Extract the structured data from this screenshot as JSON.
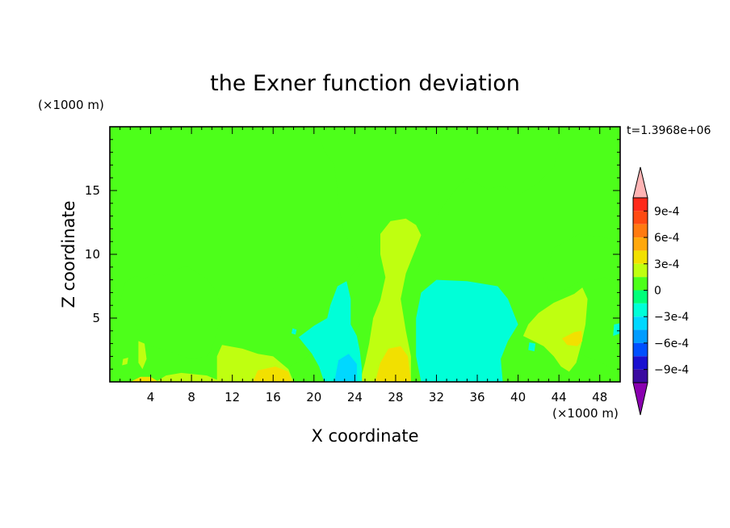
{
  "chart_data": {
    "type": "heatmap",
    "title": "the Exner function deviation",
    "xlabel": "X coordinate",
    "ylabel": "Z coordinate",
    "x_units": "(×1000 m)",
    "z_units": "(×1000 m)",
    "time_label": "t=1.3968e+06",
    "xlim": [
      0,
      50
    ],
    "ylim": [
      0,
      20
    ],
    "x_ticks": [
      4,
      8,
      12,
      16,
      20,
      24,
      28,
      32,
      36,
      40,
      44,
      48
    ],
    "y_ticks": [
      5,
      10,
      15
    ],
    "background_level": 0.0,
    "colorbar": {
      "labels": [
        {
          "value": 0.0009,
          "text": "9e-4"
        },
        {
          "value": 0.0006,
          "text": "6e-4"
        },
        {
          "value": 0.0003,
          "text": "3e-4"
        },
        {
          "value": 0,
          "text": "0"
        },
        {
          "value": -0.0003,
          "text": "−3e-4"
        },
        {
          "value": -0.0006,
          "text": "−6e-4"
        },
        {
          "value": -0.0009,
          "text": "−9e-4"
        }
      ],
      "levels": [
        {
          "min": 0.0009,
          "max": 0.00105,
          "color": "#ff2a1a"
        },
        {
          "min": 0.00075,
          "max": 0.0009,
          "color": "#ff4a12"
        },
        {
          "min": 0.0006,
          "max": 0.00075,
          "color": "#ff7a10"
        },
        {
          "min": 0.00045,
          "max": 0.0006,
          "color": "#ffa80c"
        },
        {
          "min": 0.0003,
          "max": 0.00045,
          "color": "#f2e000"
        },
        {
          "min": 0.00015,
          "max": 0.0003,
          "color": "#bfff10"
        },
        {
          "min": 0,
          "max": 0.00015,
          "color": "#4dff1a"
        },
        {
          "min": -0.00015,
          "max": 0,
          "color": "#00ff7a"
        },
        {
          "min": -0.0003,
          "max": -0.00015,
          "color": "#00ffd8"
        },
        {
          "min": -0.00045,
          "max": -0.0003,
          "color": "#00d8ff"
        },
        {
          "min": -0.0006,
          "max": -0.00045,
          "color": "#009cff"
        },
        {
          "min": -0.00075,
          "max": -0.0006,
          "color": "#0050ff"
        },
        {
          "min": -0.0009,
          "max": -0.00075,
          "color": "#1a10d0"
        },
        {
          "min": -0.00105,
          "max": -0.0009,
          "color": "#3a0aa0"
        }
      ],
      "over_color": "#ffb4b4",
      "under_color": "#8a00b0"
    },
    "regions": [
      {
        "level": 8e-05,
        "points": [
          [
            0,
            0
          ],
          [
            50,
            0
          ],
          [
            50,
            0.6
          ],
          [
            48,
            1.6
          ],
          [
            46,
            2.2
          ],
          [
            44.5,
            1.6
          ],
          [
            42,
            2.6
          ],
          [
            40,
            3.4
          ],
          [
            39,
            3.2
          ],
          [
            38,
            2.4
          ],
          [
            37,
            2
          ],
          [
            36,
            1.6
          ],
          [
            35,
            0.8
          ],
          [
            34,
            0.4
          ],
          [
            33,
            0.2
          ],
          [
            30,
            0.3
          ],
          [
            29.5,
            1
          ],
          [
            29,
            4
          ],
          [
            28.5,
            6.5
          ],
          [
            29,
            8.5
          ],
          [
            29.5,
            9.5
          ],
          [
            30,
            10.5
          ],
          [
            31,
            11.6
          ],
          [
            32.5,
            13.6
          ],
          [
            34,
            15.2
          ],
          [
            35,
            16
          ],
          [
            37,
            15.1
          ],
          [
            38.5,
            15.4
          ],
          [
            40,
            14.6
          ],
          [
            42,
            15.6
          ],
          [
            43.5,
            16.8
          ],
          [
            44,
            18.4
          ],
          [
            43.5,
            20
          ],
          [
            20.5,
            20
          ],
          [
            20.5,
            19.5
          ],
          [
            21,
            18.1
          ],
          [
            22,
            17
          ],
          [
            22.3,
            15
          ],
          [
            22.5,
            13.5
          ],
          [
            23,
            11.6
          ],
          [
            24,
            10.3
          ],
          [
            24.5,
            9.2
          ],
          [
            23.5,
            8.1
          ],
          [
            23,
            7
          ],
          [
            23.5,
            5.9
          ],
          [
            22.5,
            5.6
          ],
          [
            21.5,
            5.3
          ],
          [
            21.3,
            3.8
          ],
          [
            20,
            2.5
          ],
          [
            19,
            1.7
          ],
          [
            18,
            1.4
          ],
          [
            17,
            0.9
          ],
          [
            15,
            0.6
          ],
          [
            13,
            0.4
          ],
          [
            11,
            0.5
          ],
          [
            9,
            0.7
          ],
          [
            7,
            0.6
          ],
          [
            5,
            0.7
          ],
          [
            3.5,
            1
          ],
          [
            3,
            0.5
          ],
          [
            1.5,
            0.4
          ],
          [
            0,
            0.4
          ]
        ]
      },
      {
        "level": 8e-05,
        "points": [
          [
            1.5,
            7.8
          ],
          [
            2.5,
            8.3
          ],
          [
            3.4,
            8.1
          ],
          [
            4.5,
            8.5
          ],
          [
            5.5,
            8.3
          ],
          [
            6.5,
            8.8
          ],
          [
            7.5,
            9.1
          ],
          [
            8.5,
            8.6
          ],
          [
            9.5,
            8.1
          ],
          [
            10.5,
            7
          ],
          [
            11,
            5.5
          ],
          [
            10.5,
            4
          ],
          [
            10,
            2.6
          ],
          [
            9.5,
            2
          ],
          [
            8,
            1.8
          ],
          [
            6.5,
            2.2
          ],
          [
            5,
            2.6
          ],
          [
            3.5,
            2.9
          ],
          [
            2,
            3
          ],
          [
            1.5,
            4.5
          ],
          [
            1,
            6.2
          ]
        ]
      },
      {
        "level": 8e-05,
        "points": [
          [
            43.5,
            10.5
          ],
          [
            46,
            11.6
          ],
          [
            48.5,
            11.3
          ],
          [
            50,
            11
          ],
          [
            50,
            7.5
          ],
          [
            48.5,
            8.2
          ],
          [
            47.5,
            8
          ],
          [
            46,
            7.9
          ],
          [
            44.5,
            7.2
          ],
          [
            43,
            7.2
          ],
          [
            42.5,
            8.1
          ]
        ]
      },
      {
        "level": 8e-05,
        "points": [
          [
            0,
            1
          ],
          [
            1.5,
            1.5
          ],
          [
            2.5,
            2.5
          ],
          [
            3,
            3.5
          ],
          [
            2.5,
            4.5
          ],
          [
            1.5,
            5.3
          ],
          [
            1,
            6.5
          ],
          [
            0.5,
            7.8
          ],
          [
            0,
            8.1
          ]
        ]
      },
      {
        "level": 8e-05,
        "points": [
          [
            15.2,
            8
          ],
          [
            15.8,
            8.6
          ],
          [
            16.4,
            8.2
          ],
          [
            16,
            7.2
          ]
        ]
      },
      {
        "level": 0.00022,
        "points": [
          [
            24.5,
            0
          ],
          [
            29.5,
            0
          ],
          [
            29.5,
            2
          ],
          [
            29,
            4
          ],
          [
            28.5,
            6.5
          ],
          [
            29,
            8.5
          ],
          [
            30,
            10.5
          ],
          [
            30.5,
            11.5
          ],
          [
            30,
            12.3
          ],
          [
            29,
            12.8
          ],
          [
            27.5,
            12.6
          ],
          [
            26.5,
            11.6
          ],
          [
            26.5,
            10
          ],
          [
            27,
            8.2
          ],
          [
            26.5,
            6.4
          ],
          [
            25.8,
            5
          ],
          [
            25.4,
            3
          ],
          [
            25,
            1.5
          ]
        ]
      },
      {
        "level": 0.00022,
        "points": [
          [
            10.5,
            0
          ],
          [
            18,
            0
          ],
          [
            17.5,
            1
          ],
          [
            16,
            2
          ],
          [
            14.5,
            2.2
          ],
          [
            13,
            2.6
          ],
          [
            11,
            2.9
          ],
          [
            10.5,
            2
          ]
        ]
      },
      {
        "level": 0.00022,
        "points": [
          [
            40.5,
            3.6
          ],
          [
            41,
            4.5
          ],
          [
            42,
            5.4
          ],
          [
            43.5,
            6.2
          ],
          [
            45.5,
            6.9
          ],
          [
            46.3,
            7.4
          ],
          [
            46.8,
            6.5
          ],
          [
            46.6,
            4.5
          ],
          [
            46.2,
            3
          ],
          [
            45.7,
            1.5
          ],
          [
            45,
            0.8
          ],
          [
            44.2,
            1.2
          ],
          [
            43.5,
            2
          ],
          [
            42.5,
            2.8
          ],
          [
            41.5,
            3.2
          ]
        ]
      },
      {
        "level": 0.00022,
        "points": [
          [
            2.8,
            3.2
          ],
          [
            3.4,
            3
          ],
          [
            3.6,
            1.8
          ],
          [
            3.2,
            1
          ],
          [
            2.8,
            1.5
          ]
        ]
      },
      {
        "level": 0.00022,
        "points": [
          [
            1.3,
            1.8
          ],
          [
            1.8,
            1.9
          ],
          [
            1.7,
            1.4
          ],
          [
            1.2,
            1.3
          ]
        ]
      },
      {
        "level": 0.00022,
        "points": [
          [
            4.5,
            0
          ],
          [
            11,
            0
          ],
          [
            9.5,
            0.5
          ],
          [
            7,
            0.7
          ],
          [
            5.5,
            0.5
          ]
        ]
      },
      {
        "level": 0.00038,
        "points": [
          [
            26,
            0
          ],
          [
            29.5,
            0
          ],
          [
            29.2,
            2
          ],
          [
            28.5,
            2.8
          ],
          [
            27.3,
            2.6
          ],
          [
            26.5,
            1.5
          ]
        ]
      },
      {
        "level": 0.00038,
        "points": [
          [
            44.3,
            3.4
          ],
          [
            45.5,
            3.9
          ],
          [
            46.2,
            4
          ],
          [
            46.3,
            3.2
          ],
          [
            45.8,
            2.8
          ],
          [
            44.8,
            2.9
          ]
        ]
      },
      {
        "level": 0.00038,
        "points": [
          [
            14,
            0
          ],
          [
            17.8,
            0
          ],
          [
            17.5,
            0.8
          ],
          [
            16.2,
            1.2
          ],
          [
            14.5,
            0.9
          ]
        ]
      },
      {
        "level": 0.00038,
        "points": [
          [
            2,
            0
          ],
          [
            4.8,
            0
          ],
          [
            4,
            0.4
          ],
          [
            3,
            0.4
          ]
        ]
      },
      {
        "level": -0.00022,
        "points": [
          [
            30.5,
            0
          ],
          [
            38.5,
            0
          ],
          [
            38.3,
            1.8
          ],
          [
            39,
            3.2
          ],
          [
            40,
            4.5
          ],
          [
            39,
            6.5
          ],
          [
            38,
            7.5
          ],
          [
            35,
            7.9
          ],
          [
            32,
            8
          ],
          [
            30.5,
            7
          ],
          [
            30,
            5
          ],
          [
            30,
            2
          ]
        ]
      },
      {
        "level": -0.00022,
        "points": [
          [
            18.5,
            3.5
          ],
          [
            20,
            4.4
          ],
          [
            21.3,
            5
          ],
          [
            21.6,
            6
          ],
          [
            22.3,
            7.5
          ],
          [
            23.2,
            7.9
          ],
          [
            23.6,
            6.5
          ],
          [
            23.6,
            4.5
          ],
          [
            24.2,
            3.6
          ],
          [
            24.5,
            2.4
          ],
          [
            24.7,
            1
          ],
          [
            24.7,
            0
          ],
          [
            21,
            0
          ],
          [
            20.5,
            1.2
          ],
          [
            19.8,
            2.2
          ]
        ]
      },
      {
        "level": -0.00022,
        "points": [
          [
            49.3,
            3.6
          ],
          [
            50,
            3.8
          ],
          [
            50,
            4.6
          ],
          [
            49.4,
            4.5
          ]
        ]
      },
      {
        "level": -0.00022,
        "points": [
          [
            41,
            2.5
          ],
          [
            41.6,
            2.4
          ],
          [
            41.7,
            3
          ],
          [
            41.1,
            3.1
          ]
        ]
      },
      {
        "level": -0.00022,
        "points": [
          [
            17.8,
            3.8
          ],
          [
            18.2,
            3.7
          ],
          [
            18.3,
            4.1
          ],
          [
            17.9,
            4.2
          ]
        ]
      },
      {
        "level": -0.00038,
        "points": [
          [
            22,
            0
          ],
          [
            24.2,
            0
          ],
          [
            24.2,
            1.4
          ],
          [
            23.4,
            2.2
          ],
          [
            22.4,
            1.7
          ]
        ]
      }
    ]
  }
}
